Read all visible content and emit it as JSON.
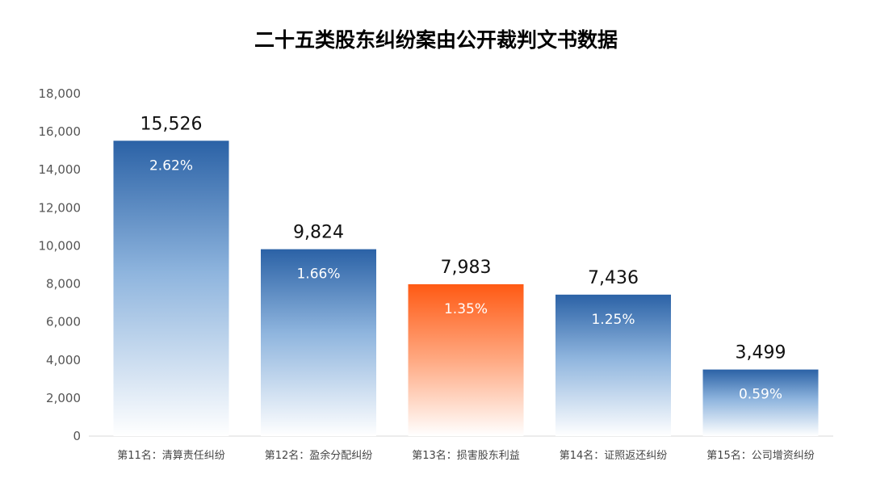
{
  "chart_data": {
    "type": "bar",
    "title": "二十五类股东纠纷案由公开裁判文书数据",
    "xlabel": "",
    "ylabel": "",
    "ylim": [
      0,
      18000
    ],
    "yticks": [
      "0",
      "2,000",
      "4,000",
      "6,000",
      "8,000",
      "10,000",
      "12,000",
      "14,000",
      "16,000",
      "18,000"
    ],
    "ytick_values": [
      0,
      2000,
      4000,
      6000,
      8000,
      10000,
      12000,
      14000,
      16000,
      18000
    ],
    "grid": false,
    "legend": "none",
    "categories": [
      "第11名：清算责任纠纷",
      "第12名：盈余分配纠纷",
      "第13名：损害股东利益",
      "第14名：证照返还纠纷",
      "第15名：公司增资纠纷"
    ],
    "values": [
      15526,
      9824,
      7983,
      7436,
      3499
    ],
    "value_labels": [
      "15,526",
      "9,824",
      "7,983",
      "7,436",
      "3,499"
    ],
    "percent_labels": [
      "2.62%",
      "1.66%",
      "1.35%",
      "1.25%",
      "0.59%"
    ],
    "highlight_index": 2,
    "colors": {
      "bar_top": "#2b62a6",
      "bar_bottom": "#ffffff",
      "highlight_top": "#ff5a14",
      "highlight_bottom": "#ffffff"
    }
  }
}
